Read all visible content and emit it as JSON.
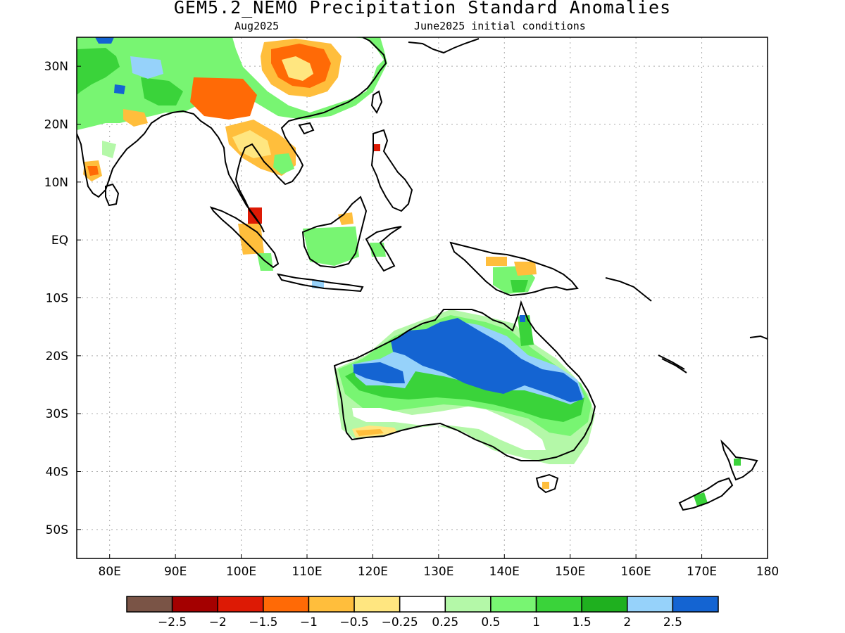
{
  "title": "GEM5.2_NEMO Precipitation Standard Anomalies",
  "subtitle_left": "Aug2025",
  "subtitle_right": "June2025 initial conditions",
  "map": {
    "lon_range": [
      75,
      180
    ],
    "lat_range": [
      -55,
      35
    ],
    "lon_ticks": [
      {
        "value": 80,
        "label": "80E"
      },
      {
        "value": 90,
        "label": "90E"
      },
      {
        "value": 100,
        "label": "100E"
      },
      {
        "value": 110,
        "label": "110E"
      },
      {
        "value": 120,
        "label": "120E"
      },
      {
        "value": 130,
        "label": "130E"
      },
      {
        "value": 140,
        "label": "140E"
      },
      {
        "value": 150,
        "label": "150E"
      },
      {
        "value": 160,
        "label": "160E"
      },
      {
        "value": 170,
        "label": "170E"
      },
      {
        "value": 180,
        "label": "180"
      }
    ],
    "lat_ticks": [
      {
        "value": 30,
        "label": "30N"
      },
      {
        "value": 20,
        "label": "20N"
      },
      {
        "value": 10,
        "label": "10N"
      },
      {
        "value": 0,
        "label": "EQ"
      },
      {
        "value": -10,
        "label": "10S"
      },
      {
        "value": -20,
        "label": "20S"
      },
      {
        "value": -30,
        "label": "30S"
      },
      {
        "value": -40,
        "label": "40S"
      },
      {
        "value": -50,
        "label": "50S"
      }
    ],
    "gridlines": "dotted"
  },
  "colorbar": {
    "colors": [
      "#7a5446",
      "#a40000",
      "#dd1a05",
      "#ff6a06",
      "#ffbe3c",
      "#ffe680",
      "#ffffff",
      "#b4f8a8",
      "#78f572",
      "#3ad33a",
      "#1fb01f",
      "#96d2fa",
      "#1464d2"
    ],
    "labels": [
      "−2.5",
      "−2",
      "−1.5",
      "−1",
      "−0.5",
      "−0.25",
      "0.25",
      "0.5",
      "1",
      "1.5",
      "2",
      "2.5"
    ]
  }
}
